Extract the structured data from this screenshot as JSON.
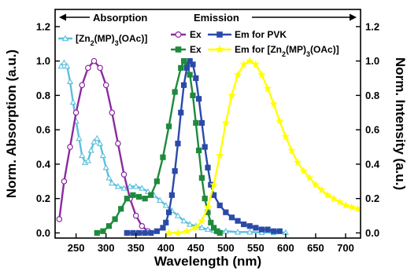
{
  "chart_data": {
    "type": "line",
    "xlabel": "Wavelength (nm)",
    "ylabel_left": "Norm. Absorption (a.u.)",
    "ylabel_right": "Norm. Intensity (a.u.)",
    "xlim": [
      215,
      725
    ],
    "ylim": [
      -0.03,
      1.3
    ],
    "x_ticks": [
      250,
      300,
      350,
      400,
      450,
      500,
      550,
      600,
      650,
      700
    ],
    "y_ticks": [
      0.0,
      0.2,
      0.4,
      0.6,
      0.8,
      1.0,
      1.2
    ],
    "y_tick_labels": [
      "0.0",
      "0.2",
      "0.4",
      "0.6",
      "0.8",
      "1.0",
      "1.2"
    ],
    "x_tick_labels": [
      "250",
      "300",
      "350",
      "400",
      "450",
      "500",
      "550",
      "600",
      "650",
      "700"
    ],
    "headers": {
      "absorption": "Absorption",
      "emission": "Emission"
    },
    "series": [
      {
        "name": "[Zn2(MP)3(OAc)]",
        "legend_main": "[Zn",
        "legend_sub1": "2",
        "legend_mid": "(MP)",
        "legend_sub2": "3",
        "legend_end": "(OAc)]",
        "color": "#5bc0de",
        "marker": "triangle",
        "x": [
          225,
          230,
          235,
          240,
          245,
          250,
          255,
          260,
          265,
          270,
          275,
          280,
          285,
          290,
          295,
          300,
          305,
          310,
          320,
          330,
          340,
          350,
          360,
          370,
          380,
          390,
          400,
          410,
          420,
          430,
          440,
          450,
          460,
          470,
          480,
          490,
          500,
          520,
          540,
          560,
          580,
          600
        ],
        "y": [
          0.97,
          0.99,
          0.97,
          0.88,
          0.76,
          0.65,
          0.55,
          0.45,
          0.41,
          0.42,
          0.48,
          0.53,
          0.55,
          0.52,
          0.45,
          0.38,
          0.32,
          0.29,
          0.27,
          0.26,
          0.27,
          0.27,
          0.26,
          0.24,
          0.22,
          0.19,
          0.16,
          0.13,
          0.1,
          0.07,
          0.05,
          0.04,
          0.03,
          0.02,
          0.015,
          0.01,
          0.01,
          0.005,
          0.005,
          0.003,
          0.002,
          0.002
        ]
      },
      {
        "name": "Ex",
        "color": "#8b2aa0",
        "marker": "circle",
        "x": [
          222,
          230,
          240,
          250,
          260,
          270,
          280,
          290,
          300,
          310,
          320,
          330,
          340,
          350,
          360,
          370
        ],
        "y": [
          0.08,
          0.3,
          0.5,
          0.7,
          0.86,
          0.96,
          1.0,
          0.96,
          0.86,
          0.7,
          0.52,
          0.34,
          0.2,
          0.1,
          0.04,
          0.01
        ]
      },
      {
        "name": "Ex",
        "color": "#1e8a3c",
        "marker": "square",
        "x": [
          285,
          295,
          305,
          315,
          325,
          335,
          345,
          355,
          365,
          375,
          385,
          395,
          405,
          415,
          425,
          430,
          435,
          440,
          445,
          450,
          455,
          460,
          465,
          470,
          475,
          480,
          485,
          490
        ],
        "y": [
          0.0,
          0.01,
          0.04,
          0.08,
          0.14,
          0.2,
          0.22,
          0.21,
          0.2,
          0.22,
          0.3,
          0.44,
          0.62,
          0.82,
          0.96,
          1.0,
          0.98,
          0.92,
          0.8,
          0.64,
          0.48,
          0.32,
          0.2,
          0.12,
          0.06,
          0.03,
          0.01,
          0.0
        ]
      },
      {
        "name": "Em for PVK",
        "color": "#2b4aa8",
        "marker": "square",
        "x": [
          335,
          345,
          355,
          365,
          375,
          385,
          395,
          400,
          405,
          410,
          415,
          420,
          425,
          430,
          435,
          440,
          445,
          450,
          455,
          460,
          465,
          470,
          475,
          480,
          490,
          500,
          510,
          520,
          530,
          540,
          550,
          560,
          570,
          580,
          590
        ],
        "y": [
          0.0,
          0.0,
          0.0,
          0.0,
          0.0,
          0.01,
          0.03,
          0.06,
          0.12,
          0.22,
          0.36,
          0.52,
          0.7,
          0.86,
          0.96,
          1.0,
          0.98,
          0.9,
          0.78,
          0.64,
          0.5,
          0.38,
          0.28,
          0.22,
          0.16,
          0.12,
          0.09,
          0.07,
          0.05,
          0.04,
          0.03,
          0.02,
          0.02,
          0.01,
          0.01
        ]
      },
      {
        "name": "Em for [Zn2(MP)3(OAc)]",
        "legend_main": "Em for [Zn",
        "legend_sub1": "2",
        "legend_mid": "(MP)",
        "legend_sub2": "3",
        "legend_end": "(OAc)]",
        "color": "#ffff00",
        "marker": "star",
        "x": [
          405,
          420,
          435,
          450,
          460,
          470,
          480,
          490,
          500,
          510,
          520,
          530,
          540,
          550,
          560,
          570,
          580,
          590,
          600,
          610,
          620,
          630,
          640,
          650,
          660,
          670,
          680,
          690,
          700,
          710,
          720
        ],
        "y": [
          0.0,
          0.0,
          0.01,
          0.03,
          0.07,
          0.15,
          0.28,
          0.45,
          0.64,
          0.8,
          0.92,
          0.98,
          1.0,
          0.98,
          0.92,
          0.84,
          0.75,
          0.65,
          0.56,
          0.48,
          0.41,
          0.36,
          0.32,
          0.28,
          0.25,
          0.22,
          0.2,
          0.18,
          0.16,
          0.15,
          0.14
        ]
      }
    ]
  }
}
